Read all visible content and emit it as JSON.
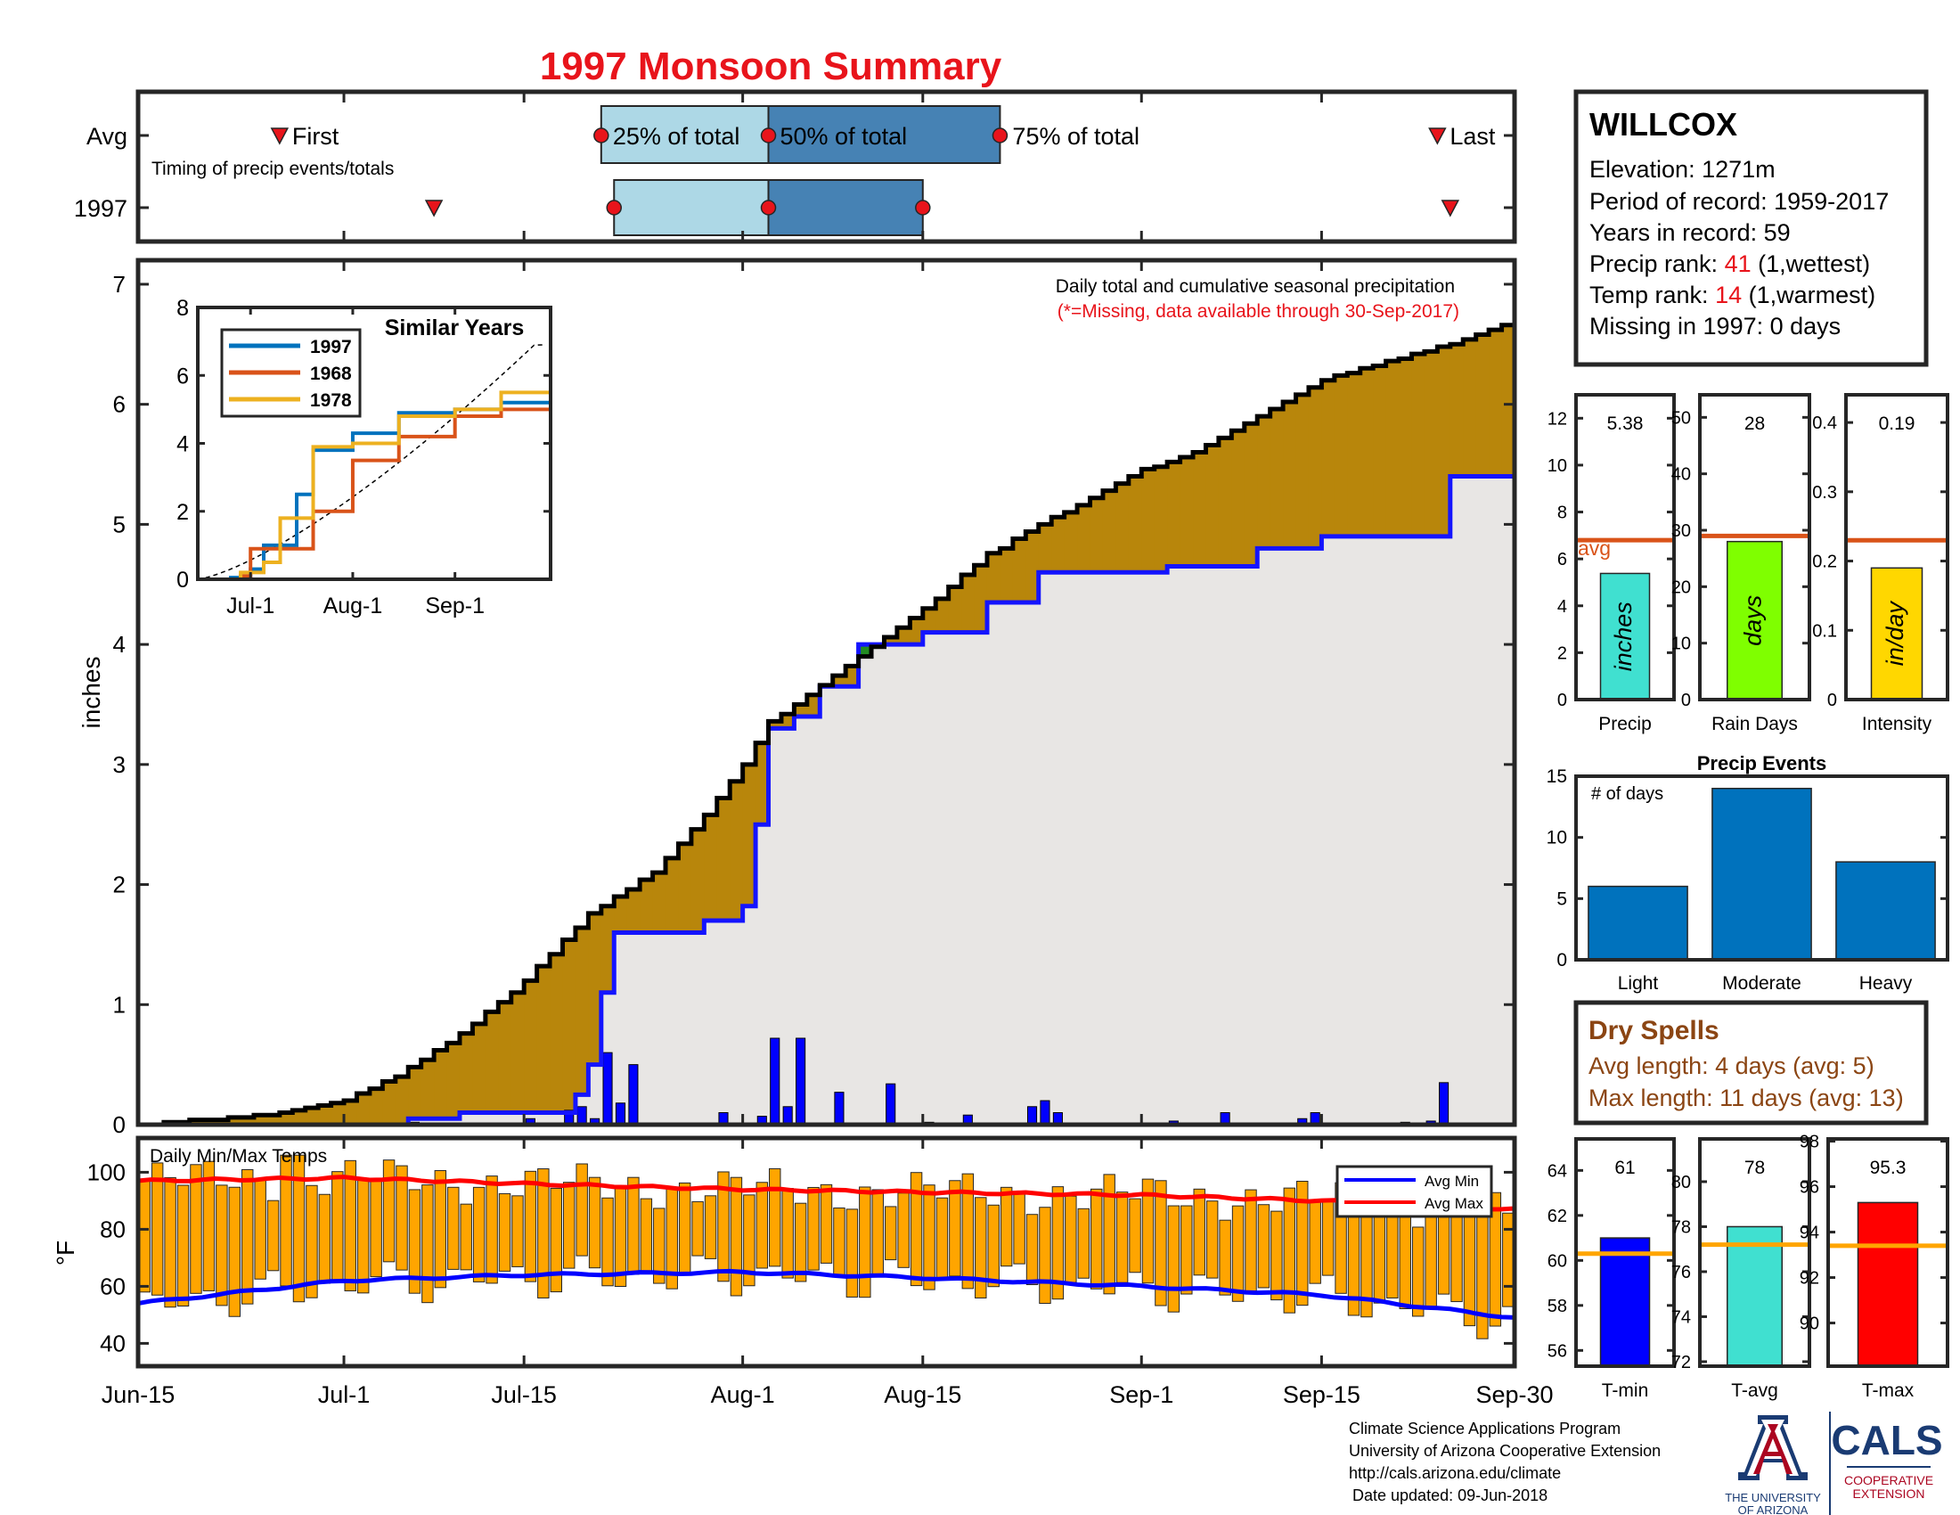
{
  "title": "1997 Monsoon Summary",
  "timing": {
    "avg_label": "Avg",
    "year_label": "1997",
    "caption": "Timing of precip events/totals",
    "first_label": "First",
    "last_label": "Last",
    "p25_label": "25% of total",
    "p50_label": "50% of total",
    "p75_label": "75% of total",
    "avg_markers": {
      "first": "2019-06-26",
      "p25": "2019-07-21",
      "p50": "2019-08-03",
      "p75": "2019-08-21",
      "last": "2019-09-24"
    },
    "year_markers": {
      "first": "2019-07-08",
      "p25": "2019-07-22",
      "p50": "2019-08-03",
      "p75": "2019-08-15",
      "last": "2019-09-25"
    }
  },
  "station": {
    "name": "WILLCOX",
    "elevation": "Elevation: 1271m",
    "period": "Period of record: 1959-2017",
    "years": "Years in record: 59",
    "precip_rank_pre": "Precip rank: ",
    "precip_rank_val": "41",
    "precip_rank_post": " (1,wettest)",
    "temp_rank_pre": "Temp rank: ",
    "temp_rank_val": "14",
    "temp_rank_post": " (1,warmest)",
    "missing": "Missing in 1997: 0 days"
  },
  "main_chart": {
    "ylabel": "inches",
    "note1": "Daily total and cumulative seasonal precipitation",
    "note2": "(*=Missing, data available through 30-Sep-2017)",
    "xticks": [
      "Jun-15",
      "Jul-1",
      "Jul-15",
      "Aug-1",
      "Aug-15",
      "Sep-1",
      "Sep-15",
      "Sep-30"
    ],
    "yticks": [
      "0",
      "1",
      "2",
      "3",
      "4",
      "5",
      "6",
      "7"
    ]
  },
  "inset": {
    "title": "Similar Years",
    "xticks": [
      "Jul-1",
      "Aug-1",
      "Sep-1"
    ],
    "yticks": [
      "0",
      "2",
      "4",
      "6",
      "8"
    ],
    "legend": [
      "1997",
      "1968",
      "1978"
    ]
  },
  "temps": {
    "title": "Daily Min/Max Temps",
    "ylabel": "°F",
    "yticks": [
      "40",
      "60",
      "80",
      "100"
    ],
    "legend_min": "Avg Min",
    "legend_max": "Avg Max"
  },
  "mini_bars": [
    {
      "value_label": "5.38",
      "unit": "inches",
      "xlabel": "Precip",
      "ticks": [
        "0",
        "2",
        "4",
        "6",
        "8",
        "10",
        "12"
      ],
      "avg_label": "avg"
    },
    {
      "value_label": "28",
      "unit": "days",
      "xlabel": "Rain Days",
      "ticks": [
        "0",
        "10",
        "20",
        "30",
        "40",
        "50"
      ]
    },
    {
      "value_label": "0.19",
      "unit": "in/day",
      "xlabel": "Intensity",
      "ticks": [
        "0",
        "0.1",
        "0.2",
        "0.3",
        "0.4"
      ]
    }
  ],
  "events": {
    "title": "Precip Events",
    "note": "# of days",
    "categories": [
      "Light",
      "Moderate",
      "Heavy"
    ],
    "ticks": [
      "0",
      "5",
      "10",
      "15"
    ]
  },
  "dry_spells": {
    "title": "Dry Spells",
    "avg": "Avg length: 4 days (avg: 5)",
    "max": "Max length: 11 days (avg: 13)"
  },
  "temp_bars": [
    {
      "value_label": "61",
      "xlabel": "T-min",
      "ticks": [
        "56",
        "58",
        "60",
        "62",
        "64"
      ]
    },
    {
      "value_label": "78",
      "xlabel": "T-avg",
      "ticks": [
        "72",
        "74",
        "76",
        "78",
        "80"
      ]
    },
    {
      "value_label": "95.3",
      "xlabel": "T-max",
      "ticks": [
        "90",
        "92",
        "94",
        "96",
        "98"
      ]
    }
  ],
  "footer": {
    "line1": "Climate Science Applications Program",
    "line2": "University of Arizona Cooperative Extension",
    "line3": "http://cals.arizona.edu/climate",
    "line4": "Date updated: 09-Jun-2018",
    "ua_line1": "THE UNIVERSITY",
    "ua_line2": "OF ARIZONA",
    "cals": "CALS",
    "coop1": "COOPERATIVE",
    "coop2": "EXTENSION"
  },
  "colors": {
    "title": "#e8141b",
    "brown": "#b8860b",
    "cum_avg": "#1414ff",
    "gray": "#e8e6e4",
    "light_blue": "#add8e6",
    "steel_blue": "#4682b4",
    "orange_bar": "#ffa500",
    "red_line": "#ff0000",
    "precip_bar": "#40e0d0",
    "raindays_bar": "#7fff00",
    "intensity_bar": "#ffd700",
    "avg_line": "#d95319",
    "tavg_line": "#ffa500",
    "event_bar": "#0072bd",
    "dry_text": "#8b4513",
    "cals_blue": "#1a3b73",
    "ua_red": "#ab0520"
  },
  "chart_data": [
    {
      "type": "line",
      "title": "Daily total and cumulative seasonal precipitation",
      "ylabel": "inches",
      "xlim": [
        "2019-06-15",
        "2019-09-30"
      ],
      "ylim": [
        0,
        7.2
      ],
      "series": [
        {
          "name": "1997 cumulative",
          "x": [
            "2019-06-15",
            "2019-06-25",
            "2019-07-01",
            "2019-07-05",
            "2019-07-10",
            "2019-07-15",
            "2019-07-20",
            "2019-07-25",
            "2019-07-28",
            "2019-08-01",
            "2019-08-03",
            "2019-08-05",
            "2019-08-10",
            "2019-08-15",
            "2019-08-20",
            "2019-08-25",
            "2019-09-01",
            "2019-09-05",
            "2019-09-10",
            "2019-09-15",
            "2019-09-20",
            "2019-09-25",
            "2019-09-30"
          ],
          "y": [
            0,
            0.08,
            0.2,
            0.4,
            0.75,
            1.2,
            1.75,
            2.1,
            2.45,
            3.0,
            3.35,
            3.5,
            3.9,
            4.3,
            4.75,
            5.05,
            5.45,
            5.6,
            5.9,
            6.2,
            6.35,
            6.5,
            6.7
          ]
        },
        {
          "name": "Avg cumulative",
          "x": [
            "2019-06-15",
            "2019-07-06",
            "2019-07-10",
            "2019-07-19",
            "2019-07-20",
            "2019-07-21",
            "2019-07-22",
            "2019-07-25",
            "2019-07-29",
            "2019-08-01",
            "2019-08-02",
            "2019-08-03",
            "2019-08-05",
            "2019-08-07",
            "2019-08-10",
            "2019-08-15",
            "2019-08-20",
            "2019-08-24",
            "2019-09-03",
            "2019-09-10",
            "2019-09-15",
            "2019-09-25",
            "2019-09-30"
          ],
          "y": [
            0,
            0.05,
            0.1,
            0.25,
            0.5,
            1.1,
            1.6,
            1.6,
            1.7,
            1.82,
            2.5,
            3.3,
            3.4,
            3.65,
            4.0,
            4.1,
            4.35,
            4.6,
            4.65,
            4.8,
            4.9,
            5.4,
            5.4
          ]
        }
      ],
      "daily_bars": {
        "x": [
          "2019-07-06",
          "2019-07-15",
          "2019-07-18",
          "2019-07-19",
          "2019-07-20",
          "2019-07-21",
          "2019-07-22",
          "2019-07-23",
          "2019-07-30",
          "2019-08-02",
          "2019-08-03",
          "2019-08-04",
          "2019-08-05",
          "2019-08-08",
          "2019-08-12",
          "2019-08-15",
          "2019-08-18",
          "2019-08-23",
          "2019-08-24",
          "2019-08-25",
          "2019-09-03",
          "2019-09-07",
          "2019-09-13",
          "2019-09-14",
          "2019-09-21",
          "2019-09-23",
          "2019-09-24"
        ],
        "y": [
          0.02,
          0.05,
          0.12,
          0.15,
          0.05,
          0.6,
          0.18,
          0.5,
          0.1,
          0.07,
          0.72,
          0.15,
          0.72,
          0.27,
          0.34,
          0.02,
          0.08,
          0.15,
          0.2,
          0.1,
          0.03,
          0.1,
          0.05,
          0.1,
          0.02,
          0.03,
          0.35
        ]
      }
    },
    {
      "type": "line",
      "title": "Similar Years",
      "ylim": [
        0,
        8
      ],
      "series": [
        {
          "name": "1997",
          "x": [
            "2019-06-15",
            "2019-06-25",
            "2019-07-01",
            "2019-07-05",
            "2019-07-15",
            "2019-07-20",
            "2019-08-01",
            "2019-08-15",
            "2019-09-01",
            "2019-09-15",
            "2019-09-30"
          ],
          "y": [
            0,
            0.05,
            0.3,
            1.0,
            2.5,
            3.8,
            4.3,
            4.9,
            5.0,
            5.2,
            5.4
          ]
        },
        {
          "name": "1968",
          "x": [
            "2019-06-15",
            "2019-06-28",
            "2019-07-01",
            "2019-07-10",
            "2019-07-20",
            "2019-08-01",
            "2019-08-15",
            "2019-09-01",
            "2019-09-15",
            "2019-09-30"
          ],
          "y": [
            0,
            0.1,
            0.9,
            0.9,
            2.0,
            3.5,
            4.2,
            4.8,
            5.0,
            5.0
          ]
        },
        {
          "name": "1978",
          "x": [
            "2019-06-15",
            "2019-06-28",
            "2019-07-05",
            "2019-07-10",
            "2019-07-20",
            "2019-08-01",
            "2019-08-15",
            "2019-09-01",
            "2019-09-15",
            "2019-09-30"
          ],
          "y": [
            0,
            0.2,
            0.5,
            1.8,
            3.9,
            4.0,
            4.8,
            5.0,
            5.5,
            5.5
          ]
        }
      ]
    },
    {
      "type": "bar",
      "title": "Daily Min/Max Temps",
      "ylabel": "°F",
      "ylim": [
        32,
        112
      ],
      "series": [
        {
          "name": "Avg Min",
          "x": [
            "2019-06-15",
            "2019-07-01",
            "2019-07-15",
            "2019-08-01",
            "2019-08-15",
            "2019-09-01",
            "2019-09-15",
            "2019-09-30"
          ],
          "y": [
            54,
            62,
            64,
            65,
            63,
            60,
            57,
            49
          ]
        },
        {
          "name": "Avg Max",
          "x": [
            "2019-06-15",
            "2019-07-01",
            "2019-07-15",
            "2019-08-01",
            "2019-08-15",
            "2019-09-01",
            "2019-09-15",
            "2019-09-30"
          ],
          "y": [
            97,
            98,
            96,
            94,
            93,
            92,
            90,
            87
          ]
        }
      ]
    },
    {
      "type": "bar",
      "categories": [
        "Precip",
        "Rain Days",
        "Intensity"
      ],
      "series": [
        {
          "name": "1997",
          "values": [
            5.38,
            28,
            0.19
          ]
        },
        {
          "name": "avg",
          "values": [
            6.8,
            29,
            0.23
          ]
        }
      ]
    },
    {
      "type": "bar",
      "title": "Precip Events",
      "categories": [
        "Light",
        "Moderate",
        "Heavy"
      ],
      "values": [
        6,
        14,
        8
      ],
      "ylim": [
        0,
        15
      ]
    },
    {
      "type": "bar",
      "categories": [
        "T-min",
        "T-avg",
        "T-max"
      ],
      "series": [
        {
          "name": "1997",
          "values": [
            61,
            78,
            95.3
          ]
        },
        {
          "name": "avg",
          "values": [
            60.3,
            77.2,
            93.4
          ]
        }
      ]
    }
  ]
}
